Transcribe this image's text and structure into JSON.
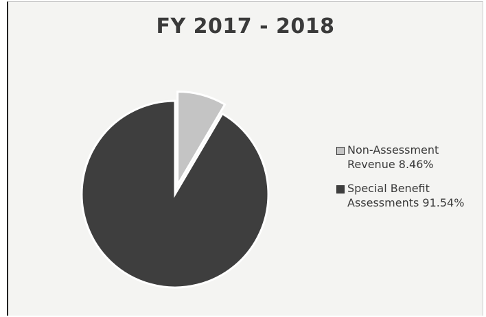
{
  "chart_data": {
    "type": "pie",
    "title": "FY 2017 - 2018",
    "slices": [
      {
        "label": "Non-Assessment Revenue 8.46%",
        "value": 8.46,
        "color": "#c4c4c4",
        "exploded": true
      },
      {
        "label": "Special Benefit Assessments 91.54%",
        "value": 91.54,
        "color": "#3e3e3e",
        "exploded": false
      }
    ],
    "legend_position": "right"
  }
}
